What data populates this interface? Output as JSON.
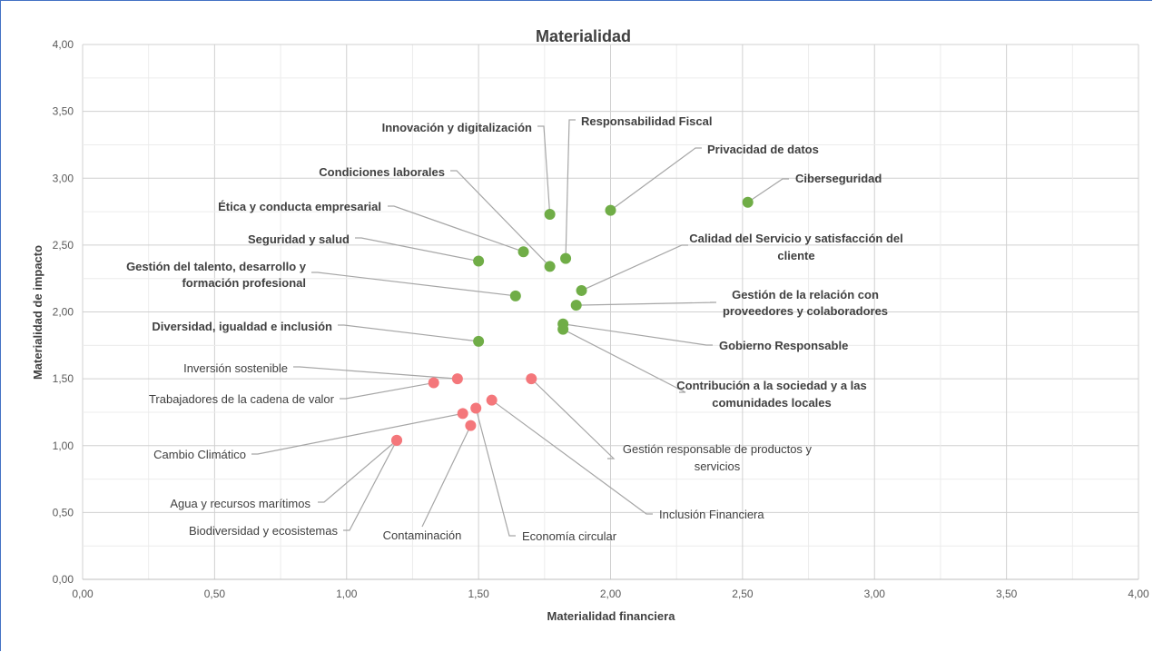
{
  "chart_data": {
    "type": "scatter",
    "title": "Materialidad",
    "xlabel": "Materialidad financiera",
    "ylabel": "Materialidad de impacto",
    "xlim": [
      0,
      4
    ],
    "ylim": [
      0,
      4
    ],
    "x_ticks": [
      "0,00",
      "0,50",
      "1,00",
      "1,50",
      "2,00",
      "2,50",
      "3,00",
      "3,50",
      "4,00"
    ],
    "y_ticks": [
      "0,00",
      "0,50",
      "1,00",
      "1,50",
      "2,00",
      "2,50",
      "3,00",
      "3,50",
      "4,00"
    ],
    "grid": true,
    "colors": {
      "green": "#70ad47",
      "red": "#f4777b",
      "leader": "#a6a6a6",
      "grid": "#d9d9d9"
    },
    "points": [
      {
        "label": "Innovación y digitalización",
        "x": 1.77,
        "y": 2.73,
        "color": "green"
      },
      {
        "label": "Responsabilidad Fiscal",
        "x": 1.83,
        "y": 2.4,
        "color": "green"
      },
      {
        "label": "Privacidad de datos",
        "x": 2.0,
        "y": 2.76,
        "color": "green"
      },
      {
        "label": "Ciberseguridad",
        "x": 2.52,
        "y": 2.82,
        "color": "green"
      },
      {
        "label": "Condiciones laborales",
        "x": 1.77,
        "y": 2.34,
        "color": "green"
      },
      {
        "label": "Ética y conducta empresarial",
        "x": 1.67,
        "y": 2.45,
        "color": "green"
      },
      {
        "label": "Seguridad y salud",
        "x": 1.5,
        "y": 2.38,
        "color": "green"
      },
      {
        "label": "Gestión del talento, desarrollo y formación profesional",
        "x": 1.64,
        "y": 2.12,
        "color": "green"
      },
      {
        "label": "Calidad del Servicio y satisfacción del cliente",
        "x": 1.89,
        "y": 2.16,
        "color": "green"
      },
      {
        "label": "Gestión de la relación con proveedores y colaboradores",
        "x": 1.87,
        "y": 2.05,
        "color": "green"
      },
      {
        "label": "Diversidad, igualdad e inclusión",
        "x": 1.5,
        "y": 1.78,
        "color": "green"
      },
      {
        "label": "Gobierno Responsable",
        "x": 1.82,
        "y": 1.91,
        "color": "green"
      },
      {
        "label": "Contribución a la sociedad y a las comunidades locales",
        "x": 1.82,
        "y": 1.87,
        "color": "green"
      },
      {
        "label": "Inversión sostenible",
        "x": 1.42,
        "y": 1.5,
        "color": "red"
      },
      {
        "label": "Trabajadores de la cadena de valor",
        "x": 1.33,
        "y": 1.47,
        "color": "red"
      },
      {
        "label": "Gestión responsable de productos y servicios",
        "x": 1.7,
        "y": 1.5,
        "color": "red"
      },
      {
        "label": "Inclusión Financiera",
        "x": 1.55,
        "y": 1.34,
        "color": "red"
      },
      {
        "label": "Economía circular",
        "x": 1.49,
        "y": 1.28,
        "color": "red"
      },
      {
        "label": "Cambio Climático",
        "x": 1.44,
        "y": 1.24,
        "color": "red"
      },
      {
        "label": "Contaminación",
        "x": 1.47,
        "y": 1.15,
        "color": "red"
      },
      {
        "label": "Agua y recursos marítimos",
        "x": 1.19,
        "y": 1.04,
        "color": "red"
      },
      {
        "label": "Biodiversidad y ecosistemas",
        "x": 1.19,
        "y": 1.04,
        "color": "red"
      }
    ]
  }
}
